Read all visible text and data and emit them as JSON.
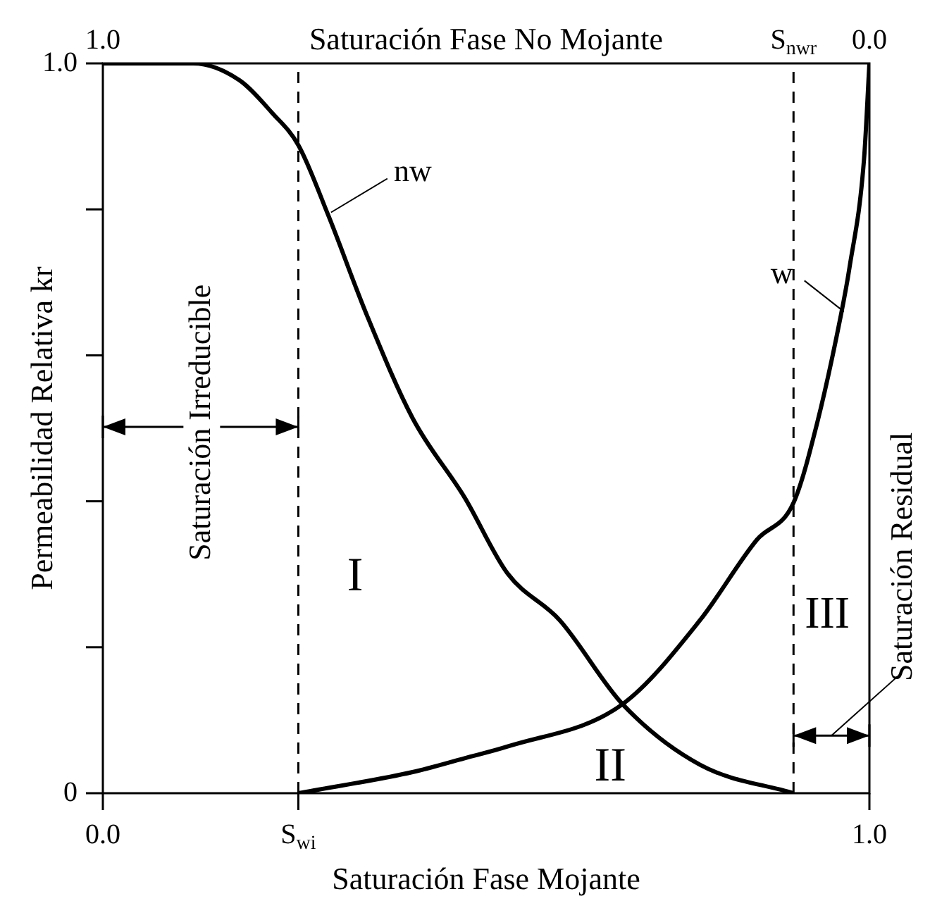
{
  "chart_data": {
    "type": "line",
    "xlabel": "Saturación Fase Mojante",
    "x2label": "Saturación Fase No Mojante",
    "ylabel": "Permeabilidad Relativa kr",
    "xlim": [
      0,
      1
    ],
    "xticks": [
      {
        "value": 0,
        "label": "0.0"
      },
      {
        "value": 0.255,
        "label": "S$_{wi}$"
      },
      {
        "value": 1,
        "label": "1.0"
      }
    ],
    "x2lim": [
      1,
      0
    ],
    "x2ticks": [
      {
        "value": 1,
        "label": "1.0"
      },
      {
        "value": 0.099,
        "label": "S$_{nwr}$"
      },
      {
        "value": 0,
        "label": "0.0"
      }
    ],
    "ylim": [
      0,
      1
    ],
    "yticks": [
      0,
      {
        "value": 0.2,
        "label": null
      },
      {
        "value": 0.4,
        "label": null
      },
      {
        "value": 0.6,
        "label": null
      },
      {
        "value": 0.8,
        "label": null
      },
      {
        "value": 1,
        "label": "1.0"
      }
    ],
    "series": [
      {
        "name": "nw",
        "color": "#000000",
        "x": [
          0,
          0.118,
          0.178,
          0.221,
          0.255,
          0.294,
          0.344,
          0.404,
          0.472,
          0.528,
          0.596,
          0.678,
          0.779,
          0.901
        ],
        "values": [
          1,
          1,
          0.977,
          0.932,
          0.888,
          0.792,
          0.656,
          0.514,
          0.405,
          0.301,
          0.237,
          0.122,
          0.039,
          0
        ]
      },
      {
        "name": "w",
        "color": "#000000",
        "x": [
          0.255,
          0.404,
          0.472,
          0.528,
          0.678,
          0.779,
          0.853,
          0.901,
          0.932,
          0.963,
          0.974,
          0.993,
          1
        ],
        "values": [
          0,
          0.029,
          0.048,
          0.064,
          0.122,
          0.237,
          0.347,
          0.398,
          0.508,
          0.656,
          0.72,
          0.869,
          1
        ]
      }
    ],
    "ref_lines": [
      {
        "axis": "x",
        "value": 0.255,
        "line_style": "dashed"
      },
      {
        "axis": "x",
        "value": 0.901,
        "line_style": "dashed"
      }
    ],
    "annotations": [
      "Saturación Irreducible",
      "I",
      "II",
      "III",
      "Saturación Residual"
    ],
    "marker": "none",
    "line_style": "solid",
    "grid": false,
    "legend": false
  }
}
